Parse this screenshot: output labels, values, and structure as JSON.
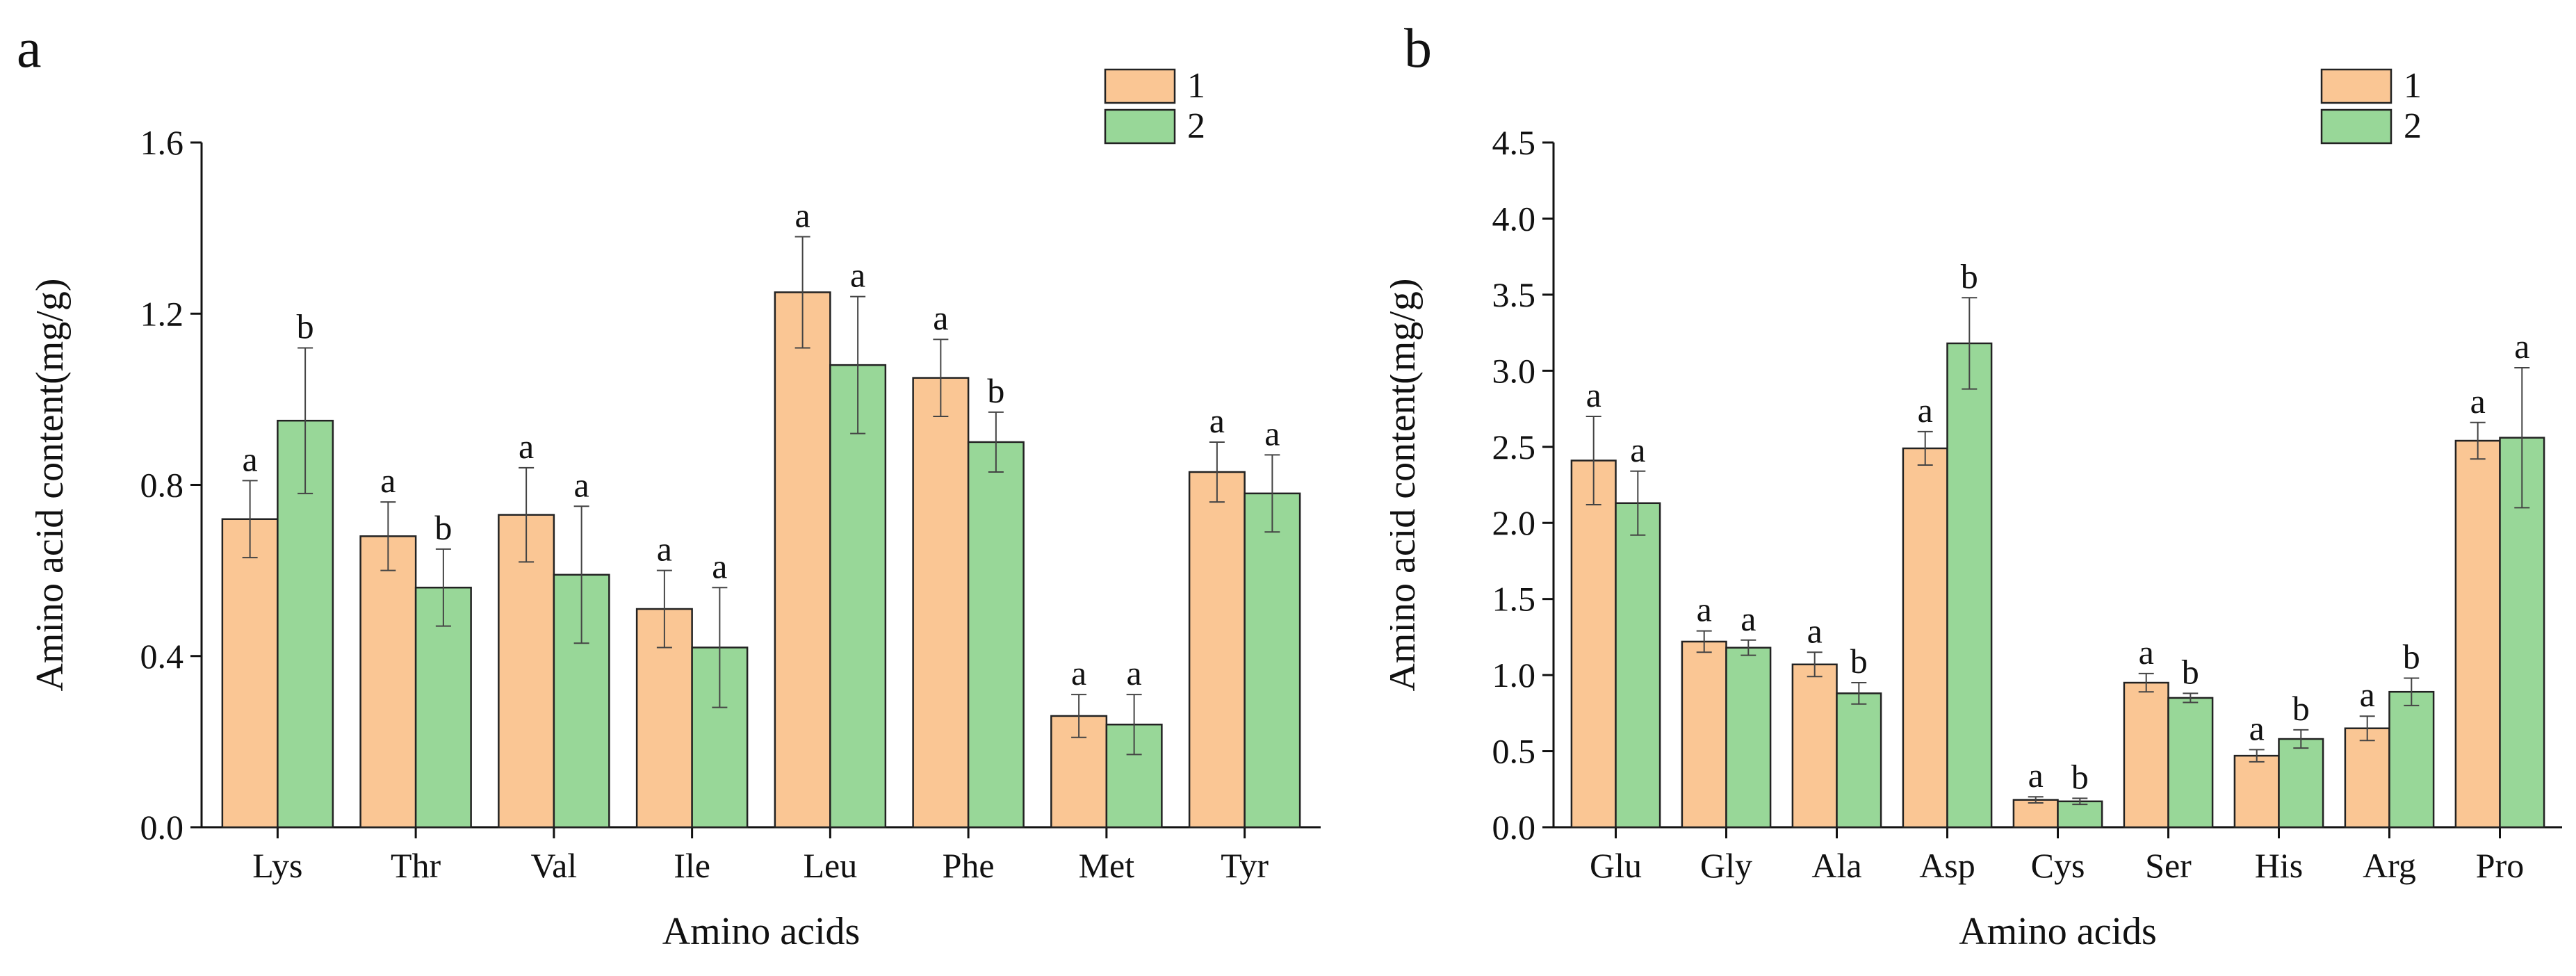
{
  "colors": {
    "series1": "#fac694",
    "series2": "#98d798",
    "axis": "#111111",
    "errbar": "#444444"
  },
  "chart_data": [
    {
      "panel": "a",
      "type": "bar",
      "title": "",
      "xlabel": "Amino acids",
      "ylabel": "Amino acid content(mg/g)",
      "ylim": [
        0,
        1.6
      ],
      "yticks": [
        "0.0",
        "0.4",
        "0.8",
        "1.2",
        "1.6"
      ],
      "ytick_values": [
        0,
        0.4,
        0.8,
        1.2,
        1.6
      ],
      "categories": [
        "Lys",
        "Thr",
        "Val",
        "Ile",
        "Leu",
        "Phe",
        "Met",
        "Tyr"
      ],
      "legend_position": "top-right",
      "series": [
        {
          "name": "1",
          "values": [
            0.72,
            0.68,
            0.73,
            0.51,
            1.25,
            1.05,
            0.26,
            0.83
          ],
          "errors": [
            0.09,
            0.08,
            0.11,
            0.09,
            0.13,
            0.09,
            0.05,
            0.07
          ],
          "labels": [
            "a",
            "a",
            "a",
            "a",
            "a",
            "a",
            "a",
            "a"
          ]
        },
        {
          "name": "2",
          "values": [
            0.95,
            0.56,
            0.59,
            0.42,
            1.08,
            0.9,
            0.24,
            0.78
          ],
          "errors": [
            0.17,
            0.09,
            0.16,
            0.14,
            0.16,
            0.07,
            0.07,
            0.09
          ],
          "labels": [
            "b",
            "b",
            "a",
            "a",
            "a",
            "b",
            "a",
            "a"
          ]
        }
      ]
    },
    {
      "panel": "b",
      "type": "bar",
      "title": "",
      "xlabel": "Amino acids",
      "ylabel": "Amino acid content(mg/g)",
      "ylim": [
        0,
        4.5
      ],
      "yticks": [
        "0.0",
        "0.5",
        "1.0",
        "1.5",
        "2.0",
        "2.5",
        "3.0",
        "3.5",
        "4.0",
        "4.5"
      ],
      "ytick_values": [
        0,
        0.5,
        1.0,
        1.5,
        2.0,
        2.5,
        3.0,
        3.5,
        4.0,
        4.5
      ],
      "categories": [
        "Glu",
        "Gly",
        "Ala",
        "Asp",
        "Cys",
        "Ser",
        "His",
        "Arg",
        "Pro"
      ],
      "legend_position": "top-right",
      "series": [
        {
          "name": "1",
          "values": [
            2.41,
            1.22,
            1.07,
            2.49,
            0.18,
            0.95,
            0.47,
            0.65,
            2.54
          ],
          "errors": [
            0.29,
            0.07,
            0.08,
            0.11,
            0.02,
            0.06,
            0.04,
            0.08,
            0.12
          ],
          "labels": [
            "a",
            "a",
            "a",
            "a",
            "a",
            "a",
            "a",
            "a",
            "a"
          ]
        },
        {
          "name": "2",
          "values": [
            2.13,
            1.18,
            0.88,
            3.18,
            0.17,
            0.85,
            0.58,
            0.89,
            2.56
          ],
          "errors": [
            0.21,
            0.05,
            0.07,
            0.3,
            0.02,
            0.03,
            0.06,
            0.09,
            0.46
          ],
          "labels": [
            "a",
            "a",
            "b",
            "b",
            "b",
            "b",
            "b",
            "b",
            "a"
          ]
        }
      ]
    }
  ]
}
